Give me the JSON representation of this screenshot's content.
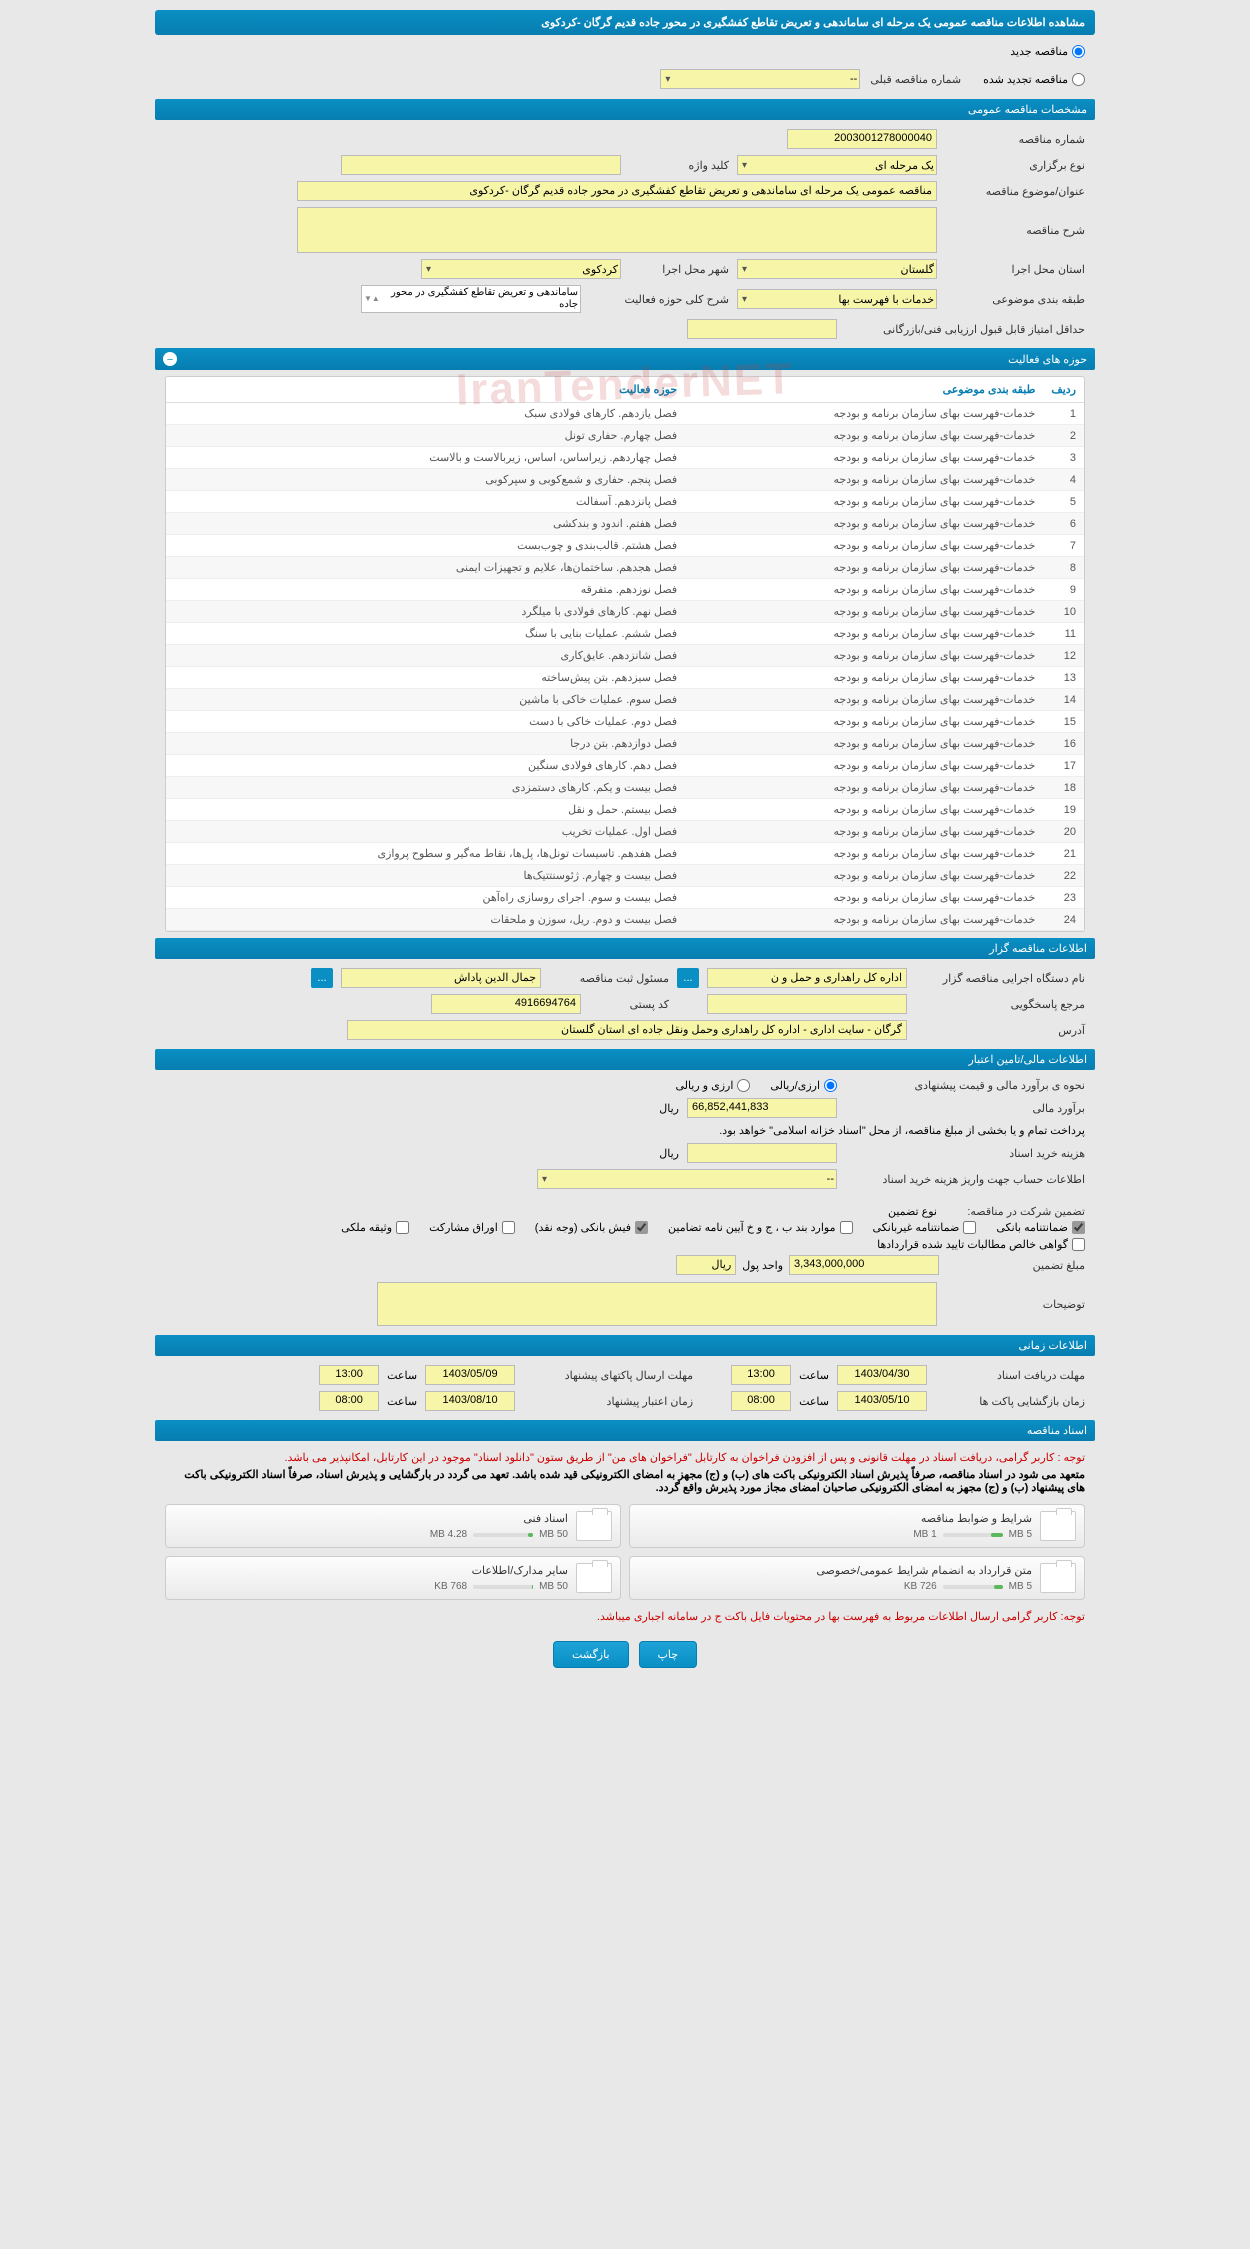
{
  "header": {
    "title": "مشاهده اطلاعات مناقصه عمومی یک مرحله ای ساماندهی و تعریض تقاطع کفشگیری در محور جاده قدیم گرگان -کردکوی"
  },
  "top_radios": {
    "new": "مناقصه جدید",
    "renewed": "مناقصه تجدید شده",
    "new_checked": true,
    "renewed_checked": false,
    "prev_label": "شماره مناقصه قبلی",
    "prev_value": "--"
  },
  "sections": {
    "general": "مشخصات مناقصه عمومی",
    "activities": "حوزه های فعالیت",
    "organizer": "اطلاعات مناقصه گزار",
    "financial": "اطلاعات مالی/تامین اعتبار",
    "timing": "اطلاعات زمانی",
    "documents": "اسناد مناقصه"
  },
  "general": {
    "tender_no_label": "شماره مناقصه",
    "tender_no": "2003001278000040",
    "type_label": "نوع برگزاری",
    "type_value": "یک مرحله ای",
    "keyword_label": "کلید واژه",
    "keyword_value": "",
    "subject_label": "عنوان/موضوع مناقصه",
    "subject_value": "مناقصه عمومی یک مرحله ای ساماندهی و تعریض تقاطع کفشگیری در محور جاده قدیم گرگان -کردکوی",
    "desc_label": "شرح مناقصه",
    "desc_value": "",
    "province_label": "استان محل اجرا",
    "province_value": "گلستان",
    "city_label": "شهر محل اجرا",
    "city_value": "کردکوی",
    "category_label": "طبقه بندی موضوعی",
    "category_value": "خدمات با فهرست بها",
    "activity_desc_label": "شرح کلی حوزه فعالیت",
    "activity_desc_value": "ساماندهی و تعریض تقاطع کفشگیری در محور جاده",
    "min_score_label": "حداقل امتیاز قابل قبول ارزیابی فنی/بازرگانی",
    "min_score_value": ""
  },
  "activities_table": {
    "col_idx": "ردیف",
    "col_cat": "طبقه بندی موضوعی",
    "col_field": "حوزه فعالیت",
    "rows": [
      {
        "i": "1",
        "cat": "خدمات-فهرست بهای سازمان برنامه و بودجه",
        "field": "فصل یازدهم. کارهای فولادی سبک"
      },
      {
        "i": "2",
        "cat": "خدمات-فهرست بهای سازمان برنامه و بودجه",
        "field": "فصل چهارم. حفاری تونل"
      },
      {
        "i": "3",
        "cat": "خدمات-فهرست بهای سازمان برنامه و بودجه",
        "field": "فصل چهاردهم. زیراساس، اساس، زیربالاست  و بالاست"
      },
      {
        "i": "4",
        "cat": "خدمات-فهرست بهای سازمان برنامه و بودجه",
        "field": "فصل پنجم. حفاری و شمع‌کوبی و سپرکوبی"
      },
      {
        "i": "5",
        "cat": "خدمات-فهرست بهای سازمان برنامه و بودجه",
        "field": "فصل پانزدهم. آسفالت"
      },
      {
        "i": "6",
        "cat": "خدمات-فهرست بهای سازمان برنامه و بودجه",
        "field": "فصل هفتم. اندود و بندکشی"
      },
      {
        "i": "7",
        "cat": "خدمات-فهرست بهای سازمان برنامه و بودجه",
        "field": "فصل هشتم. قالب‌بندی و چوب‌بست"
      },
      {
        "i": "8",
        "cat": "خدمات-فهرست بهای سازمان برنامه و بودجه",
        "field": "فصل هجدهم. ساختمان‌ها، علایم و تجهیزات ایمنی"
      },
      {
        "i": "9",
        "cat": "خدمات-فهرست بهای سازمان برنامه و بودجه",
        "field": "فصل نوزدهم. متفرقه"
      },
      {
        "i": "10",
        "cat": "خدمات-فهرست بهای سازمان برنامه و بودجه",
        "field": "فصل نهم. کارهای فولادی با میلگرد"
      },
      {
        "i": "11",
        "cat": "خدمات-فهرست بهای سازمان برنامه و بودجه",
        "field": "فصل ششم. عملیات بنایی با سنگ"
      },
      {
        "i": "12",
        "cat": "خدمات-فهرست بهای سازمان برنامه و بودجه",
        "field": "فصل شانزدهم. عایق‌کاری"
      },
      {
        "i": "13",
        "cat": "خدمات-فهرست بهای سازمان برنامه و بودجه",
        "field": "فصل سیزدهم. بتن پیش‌ساخته"
      },
      {
        "i": "14",
        "cat": "خدمات-فهرست بهای سازمان برنامه و بودجه",
        "field": "فصل سوم. عملیات خاکی با ماشین"
      },
      {
        "i": "15",
        "cat": "خدمات-فهرست بهای سازمان برنامه و بودجه",
        "field": "فصل دوم. عملیات خاکی با دست"
      },
      {
        "i": "16",
        "cat": "خدمات-فهرست بهای سازمان برنامه و بودجه",
        "field": "فصل دوازدهم. بتن درجا"
      },
      {
        "i": "17",
        "cat": "خدمات-فهرست بهای سازمان برنامه و بودجه",
        "field": "فصل دهم. کارهای فولادی سنگین"
      },
      {
        "i": "18",
        "cat": "خدمات-فهرست بهای سازمان برنامه و بودجه",
        "field": "فصل بیست و یکم. کارهای دستمزدی"
      },
      {
        "i": "19",
        "cat": "خدمات-فهرست بهای سازمان برنامه و بودجه",
        "field": "فصل بیستم. حمل و نقل"
      },
      {
        "i": "20",
        "cat": "خدمات-فهرست بهای سازمان برنامه و بودجه",
        "field": "فصل اول. عملیات تخریب"
      },
      {
        "i": "21",
        "cat": "خدمات-فهرست بهای سازمان برنامه و بودجه",
        "field": "فصل هفدهم. تاسیسات تونل‌ها، پل‌ها، نقاط مه‌گیر و سطوح پروازی"
      },
      {
        "i": "22",
        "cat": "خدمات-فهرست بهای سازمان برنامه و بودجه",
        "field": "فصل بیست و چهارم. ژئوسنتتیک‌ها"
      },
      {
        "i": "23",
        "cat": "خدمات-فهرست بهای سازمان برنامه و بودجه",
        "field": "فصل بیست و سوم. اجرای روسازی راه‌آهن"
      },
      {
        "i": "24",
        "cat": "خدمات-فهرست بهای سازمان برنامه و بودجه",
        "field": "فصل بیست و دوم. ریل، سوزن و ملحقات"
      }
    ]
  },
  "organizer": {
    "org_label": "نام دستگاه اجرایی مناقصه گزار",
    "org_value": "اداره کل راهداری و حمل و ن",
    "responsible_label": "مسئول ثبت مناقصه",
    "responsible_value": "جمال الدین پاداش",
    "ref_label": "مرجع پاسخگویی",
    "ref_value": "",
    "post_label": "کد پستی",
    "post_value": "4916694764",
    "address_label": "آدرس",
    "address_value": "گرگان - سایت اداری - اداره کل راهداری وحمل ونقل جاده ای استان گلستان"
  },
  "financial": {
    "estimate_label": "نحوه ی برآورد مالی و قیمت پیشنهادی",
    "radio_rial": "ارزی/ریالی",
    "radio_currency": "ارزی و ریالی",
    "radio_rial_checked": true,
    "estimate_amount_label": "برآورد مالی",
    "estimate_amount": "66,852,441,833",
    "currency_unit": "ریال",
    "payment_note": "پرداخت تمام و یا بخشی از مبلغ مناقصه، از محل \"اسناد خزانه اسلامی\" خواهد بود.",
    "doc_fee_label": "هزینه خرید اسناد",
    "doc_fee_value": "",
    "account_label": "اطلاعات حساب جهت واریز هزینه خرید اسناد",
    "account_value": "--",
    "guarantee_label": "تضمین شرکت در مناقصه:",
    "guarantee_type_label": "نوع تضمین",
    "guarantees": [
      {
        "label": "ضمانتنامه بانکی",
        "checked": true
      },
      {
        "label": "ضمانتنامه غیربانکی",
        "checked": false
      },
      {
        "label": "موارد بند ب ، ج و خ آیین نامه تضامین",
        "checked": false
      },
      {
        "label": "فیش بانکی (وجه نقد)",
        "checked": true
      },
      {
        "label": "اوراق مشارکت",
        "checked": false
      },
      {
        "label": "وثیقه ملکی",
        "checked": false
      },
      {
        "label": "گواهی خالص مطالبات تایید شده قراردادها",
        "checked": false
      }
    ],
    "guarantee_amount_label": "مبلغ تضمین",
    "guarantee_amount": "3,343,000,000",
    "unit_label": "واحد پول",
    "unit_value": "ریال",
    "notes_label": "توضیحات",
    "notes_value": ""
  },
  "timing": {
    "recv_label": "مهلت دریافت اسناد",
    "recv_date": "1403/04/30",
    "recv_time_label": "ساعت",
    "recv_time": "13:00",
    "send_label": "مهلت ارسال پاکتهای پیشنهاد",
    "send_date": "1403/05/09",
    "send_time_label": "ساعت",
    "send_time": "13:00",
    "open_label": "زمان بازگشایی پاکت ها",
    "open_date": "1403/05/10",
    "open_time_label": "ساعت",
    "open_time": "08:00",
    "validity_label": "زمان اعتبار پیشنهاد",
    "validity_date": "1403/08/10",
    "validity_time_label": "ساعت",
    "validity_time": "08:00"
  },
  "documents": {
    "warn1": "توجه : کاربر گرامی، دریافت اسناد در مهلت قانونی و پس از افزودن فراخوان به کارتابل \"فراخوان های من\" از طریق ستون \"دانلود اسناد\" موجود در این کارتابل، امکانپذیر می باشد.",
    "note1": "متعهد می شود در اسناد مناقصه، صرفاً پذیرش اسناد الکترونیکی باکت های (ب) و (ج) مجهز به امضای الکترونیکی قید شده باشد. تعهد می گردد در بارگشایی و پذیرش اسناد، صرفاً اسناد الکترونیکی باکت های پیشنهاد (ب) و (ج) مجهز به امضای الکترونیکی صاحبان امضای مجاز مورد پذیرش واقع گردد.",
    "items": [
      {
        "title": "شرایط و ضوابط مناقصه",
        "size": "1 MB",
        "cap": "5 MB",
        "fill": 20
      },
      {
        "title": "اسناد فنی",
        "size": "4.28 MB",
        "cap": "50 MB",
        "fill": 9
      },
      {
        "title": "متن قرارداد به انضمام شرایط عمومی/خصوصی",
        "size": "726 KB",
        "cap": "5 MB",
        "fill": 15
      },
      {
        "title": "سایر مدارک/اطلاعات",
        "size": "768 KB",
        "cap": "50 MB",
        "fill": 2
      }
    ],
    "warn2": "توجه: کاربر گرامی ارسال اطلاعات مربوط به فهرست بها در محتویات فایل باکت ج در سامانه اجباری میباشد."
  },
  "buttons": {
    "print": "چاپ",
    "back": "بازگشت"
  },
  "watermark": "IranTenderNET",
  "colors": {
    "accent": "#0a8fc4",
    "yellow": "#f7f5a8",
    "red": "#c00",
    "green": "#5cb85c"
  }
}
